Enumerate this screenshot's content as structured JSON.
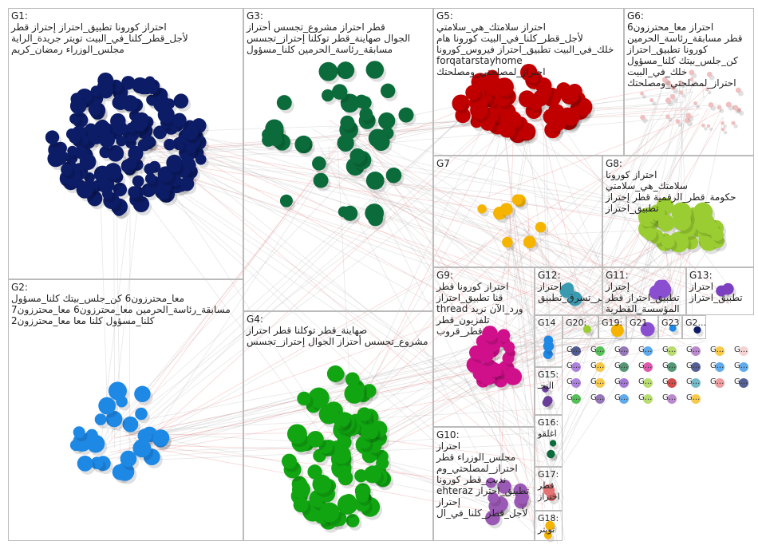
{
  "groups": [
    {
      "label": "G1:",
      "lines": [
        "احتراز كورونا تطبيق_احتراز إحتراز قطر",
        "لأجل_قطر_كلنا_في_البيت تويتر جريدة_الراية",
        "مجلس_الوزراء رمضان_كريم"
      ],
      "color": "#0c1c66"
    },
    {
      "label": "G3:",
      "lines": [
        "قطر احتراز مشروع_تجسس أحتراز",
        "الجوال صهاينة_قطر توكلنا إحتراز_تجسس",
        "مسابقة_رئاسة_الحرمين كلنا_مسؤول"
      ],
      "color": "#0b6b3a"
    },
    {
      "label": "G5:",
      "lines": [
        "احتراز سلامتك_هي_سلامتي",
        "لأجل_قطر_كلنا_في_البيت كورونا هام",
        "خلك_في_البيت تطبيق_احتراز فيروس_كورونا",
        "forqatarstayhome",
        "احتراز_لمصلحتي_ومصلحتك"
      ],
      "color": "#c00000"
    },
    {
      "label": "G6:",
      "lines": [
        "احتراز معا_محترزون6",
        "قطر مسابقة_رئاسة_الحرمين",
        "كورونا تطبيق_احتراز",
        "كن_جلس_بيتك كلنا_مسؤول",
        "خلك_في_البيت",
        "احتراز_لمصلحتي_ومصلحتك"
      ],
      "color": "#f0c0c0"
    },
    {
      "label": "G7",
      "lines": [],
      "color": "#f5b400"
    },
    {
      "label": "G8:",
      "lines": [
        "احتراز كورونا",
        "سلامتك_هي_سلامتي",
        "حكومة_قطر_الرقمية قطر إحتراز",
        "تطبيق_احتراز"
      ],
      "color": "#9acd32"
    },
    {
      "label": "G2:",
      "lines": [
        "معا_محترزون6 كن_جلس_بيتك كلنا_مسؤول",
        "مسابقة_رئاسة_الحرمين معا_محترزون6 معا_محترزون7",
        "كلنا_مسؤول كلنا معا معا_محترزون2"
      ],
      "color": "#1e88e5"
    },
    {
      "label": "G4:",
      "lines": [
        "صهاينة_قطر توكلنا قطر احتراز",
        "مشروع_تجسس أحتراز الجوال إحتراز_تجسس"
      ],
      "color": "#11a511"
    },
    {
      "label": "G9:",
      "lines": [
        "احتراز كورونا قطر",
        "قنا تطبيق_احتراز",
        "thread ورد_الآن نريد",
        "تلفزيون_قطر",
        "قطر_قروب"
      ],
      "color": "#d0108a"
    },
    {
      "label": "G12:",
      "lines": [
        "احتراز",
        "قطر_تسرق_تطبيق"
      ],
      "color": "#3a9ab0"
    },
    {
      "label": "G11:",
      "lines": [
        "إحتراز",
        "تطبيق_احتراز قطر",
        "المؤسسة_القطرية"
      ],
      "color": "#8a4fd0"
    },
    {
      "label": "G13:",
      "lines": [
        "احتراز",
        "تطبيق_احتراز"
      ],
      "color": "#7b3fc0"
    },
    {
      "label": "G10:",
      "lines": [
        "احتراز",
        "مجلس_الوزراء قطر",
        "احتراز_لمصلحتي_وم",
        "نديب_قطر كورونا",
        "ehteraz تطبيق_احتراز",
        "إحتراز",
        "لأجل_قطر_كلنا_في_ال"
      ],
      "color": "#9b59b6"
    },
    {
      "label": "G14",
      "lines": [],
      "color": "#1e88e5"
    },
    {
      "label": "G15:",
      "lines": [
        "التحـ"
      ],
      "color": "#6a3d9a"
    },
    {
      "label": "G16:",
      "lines": [
        "اغلقو"
      ],
      "color": "#0b6b3a"
    },
    {
      "label": "G17:",
      "lines": [
        "قطر",
        "احتراز"
      ],
      "color": "#e57373"
    },
    {
      "label": "G18:",
      "lines": [
        "تويتر"
      ],
      "color": "#f5b400"
    },
    {
      "label": "G20:",
      "lines": [],
      "color": "#9acd32"
    },
    {
      "label": "G19:",
      "lines": [],
      "color": "#f5b400"
    },
    {
      "label": "G21",
      "lines": [],
      "color": "#8a4fd0"
    },
    {
      "label": "G23",
      "lines": [],
      "color": "#1e88e5"
    },
    {
      "label": "G2...",
      "lines": [],
      "color": "#0c1c66"
    }
  ],
  "small_labels": [
    "G...",
    "G...",
    "G...",
    "G...",
    "G...",
    "G...",
    "G...",
    "G...",
    "G...",
    "G...",
    "G...",
    "G...",
    "G...",
    "G...",
    "G...",
    "G...",
    "G...",
    "G...",
    "G...",
    "G...",
    "G...",
    "G...",
    "G...",
    "G...",
    "G...",
    "G...",
    "G...",
    "G...",
    "G...",
    "G..."
  ]
}
